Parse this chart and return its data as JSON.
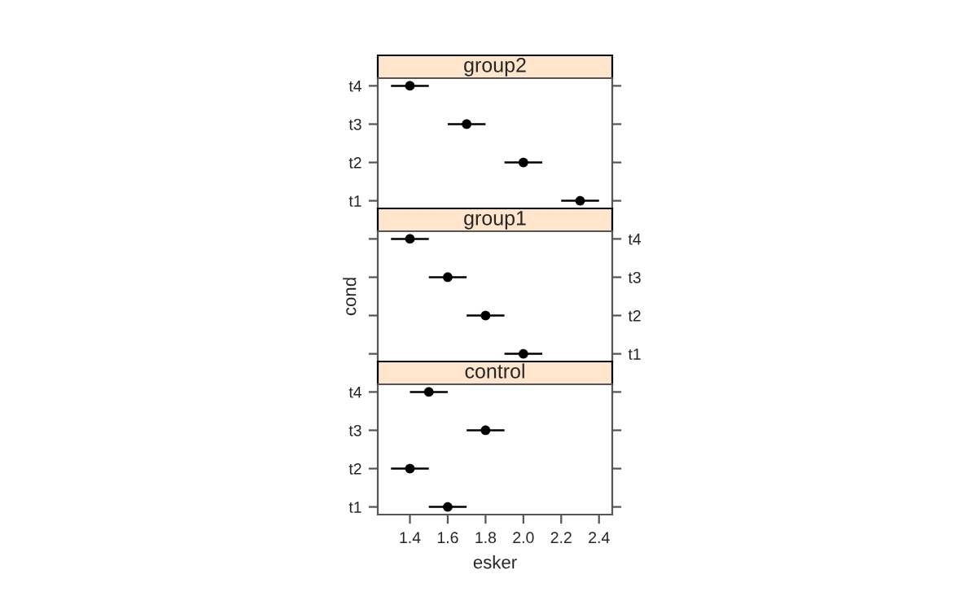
{
  "chart_data": [
    {
      "type": "scatter",
      "orientation": "horizontal",
      "title": "group2",
      "categories": [
        "t4",
        "t3",
        "t2",
        "t1"
      ],
      "values": [
        1.4,
        1.7,
        2.0,
        2.3
      ],
      "errors": [
        0.1,
        0.1,
        0.1,
        0.1
      ],
      "color": "#000000",
      "marker": "circle",
      "xlim": [
        1.23,
        2.47
      ],
      "xticks": [
        {
          "value": 1.4,
          "label": null
        },
        {
          "value": 1.6,
          "label": null
        },
        {
          "value": 1.8,
          "label": null
        },
        {
          "value": 2,
          "label": null
        },
        {
          "value": 2.2,
          "label": null
        },
        {
          "value": 2.4,
          "label": null
        }
      ],
      "tick_labels": "y"
    },
    {
      "type": "scatter",
      "orientation": "horizontal",
      "title": "group1",
      "ylabel": "cond",
      "categories": [
        "t4",
        "t3",
        "t2",
        "t1"
      ],
      "values": [
        1.4,
        1.6,
        1.8,
        2.0
      ],
      "errors": [
        0.1,
        0.1,
        0.1,
        0.1
      ],
      "color": "#000000",
      "marker": "circle",
      "xlim": [
        1.23,
        2.47
      ],
      "tick_labels": "y"
    },
    {
      "type": "scatter",
      "orientation": "horizontal",
      "title": "control",
      "xlabel": "esker",
      "categories": [
        "t4",
        "t3",
        "t2",
        "t1"
      ],
      "values": [
        1.5,
        1.8,
        1.4,
        1.6
      ],
      "errors": [
        0.1,
        0.1,
        0.1,
        0.1
      ],
      "color": "#000000",
      "marker": "circle",
      "xlim": [
        1.23,
        2.47
      ],
      "xticks": [
        1.4,
        1.6,
        1.8,
        {
          "value": 2,
          "label": "2.0"
        },
        2.2,
        2.4
      ]
    }
  ]
}
